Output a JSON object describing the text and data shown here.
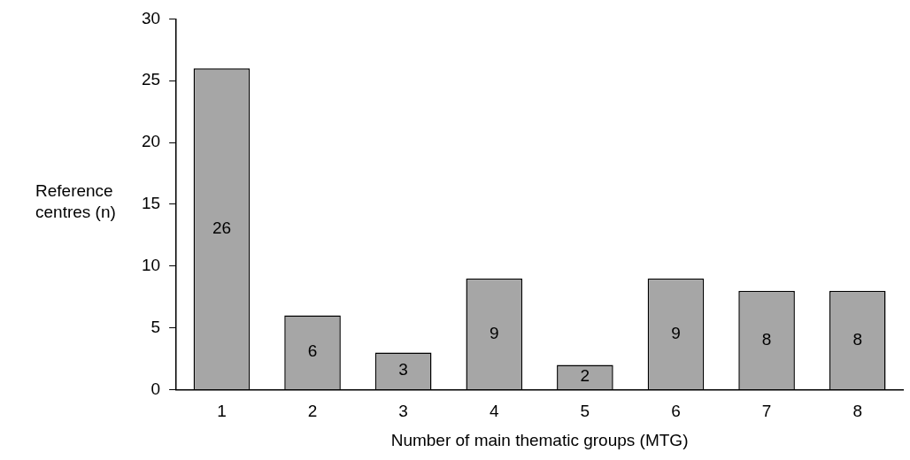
{
  "chart_data": {
    "type": "bar",
    "xlabel": "Number of main thematic groups (MTG)",
    "ylabel": "Reference centres (n)",
    "categories": [
      "1",
      "2",
      "3",
      "4",
      "5",
      "6",
      "7",
      "8"
    ],
    "values": [
      26,
      6,
      3,
      9,
      2,
      9,
      8,
      8
    ],
    "color": "#a6a6a6",
    "ylim": [
      0,
      30
    ],
    "yticks": [
      0,
      5,
      10,
      15,
      20,
      25,
      30
    ],
    "grid": false,
    "data_labels": true
  }
}
